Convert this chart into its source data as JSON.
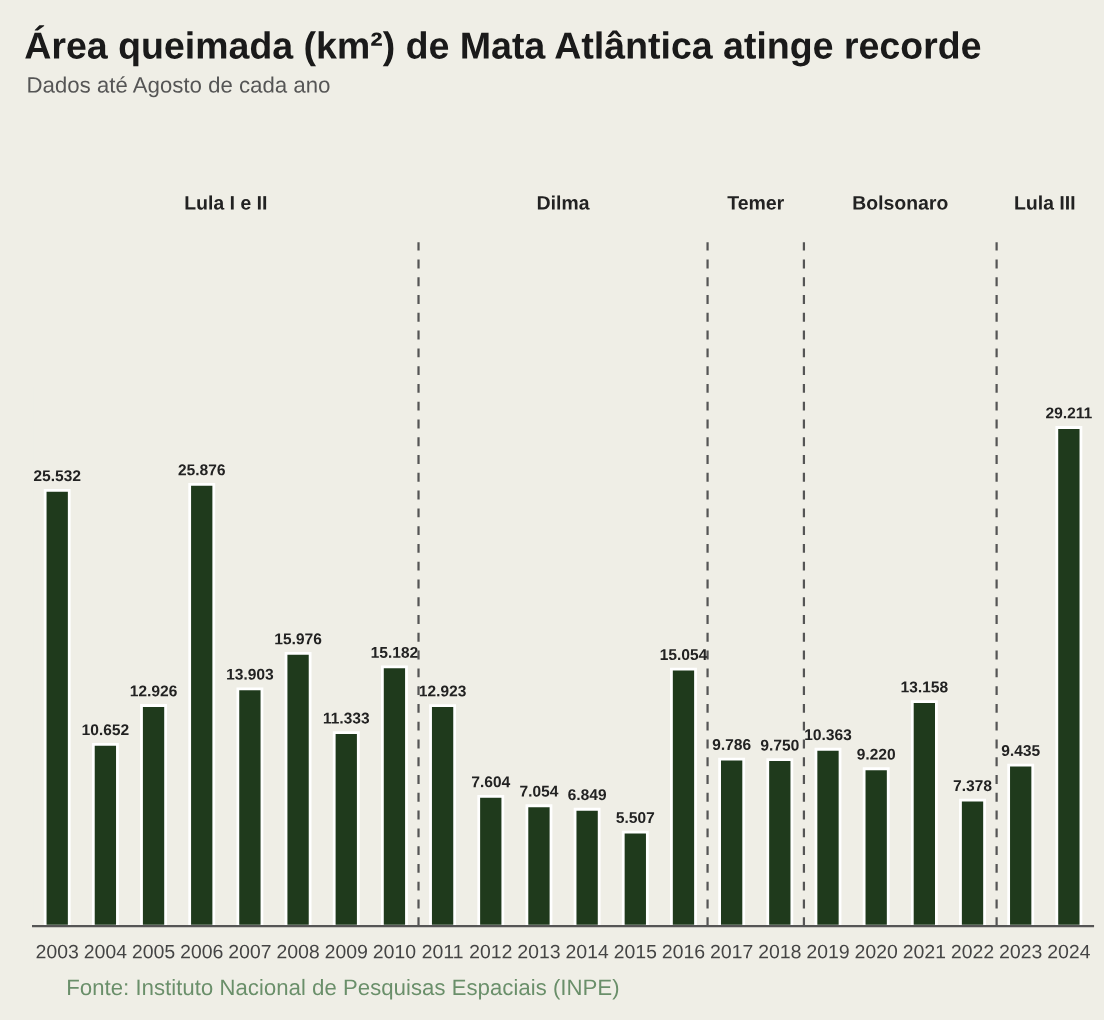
{
  "chart_data": {
    "type": "bar",
    "title": "Área queimada (km²) de Mata Atlântica atinge recorde",
    "subtitle": "Dados até Agosto de cada ano",
    "x": [
      2003,
      2004,
      2005,
      2006,
      2007,
      2008,
      2009,
      2010,
      2011,
      2012,
      2013,
      2014,
      2015,
      2016,
      2017,
      2018,
      2019,
      2020,
      2021,
      2022,
      2023,
      2024
    ],
    "xlim": [
      2002.5,
      2024.5
    ],
    "xticks": [
      2003,
      2004,
      2005,
      2006,
      2007,
      2008,
      2009,
      2010,
      2011,
      2012,
      2013,
      2014,
      2015,
      2016,
      2017,
      2018,
      2019,
      2020,
      2021,
      2022,
      2023,
      2024
    ],
    "values": [
      25532,
      10652,
      12926,
      25876,
      13903,
      15976,
      11333,
      15182,
      12923,
      7604,
      7054,
      6849,
      5507,
      15054,
      9786,
      9750,
      10363,
      9220,
      13158,
      7378,
      9435,
      29211
    ],
    "value_labels": [
      "25.532",
      "10.652",
      "12.926",
      "25.876",
      "13.903",
      "15.976",
      "11.333",
      "15.182",
      "12.923",
      "7.604",
      "7.054",
      "6.849",
      "5.507",
      "15.054",
      "9.786",
      "9.750",
      "10.363",
      "9.220",
      "13.158",
      "7.378",
      "9.435",
      "29.211"
    ],
    "color": "#1f3a1c",
    "tick_labels": "x",
    "grid": false,
    "ref_lines": [
      {
        "axis": "x",
        "value": 2010.5,
        "line_style": "dashed",
        "color": "#555555"
      },
      {
        "axis": "x",
        "value": 2016.5,
        "line_style": "dashed",
        "color": "#555555"
      },
      {
        "axis": "x",
        "value": 2018.5,
        "line_style": "dashed",
        "color": "#555555"
      },
      {
        "axis": "x",
        "value": 2022.5,
        "line_style": "dashed",
        "color": "#555555"
      }
    ],
    "annotations": [
      "Lula I e II",
      "Dilma",
      "Temer",
      "Bolsonaro",
      "Lula III",
      "Fonte: Instituto Nacional de Pesquisas Espaciais (INPE)"
    ]
  }
}
